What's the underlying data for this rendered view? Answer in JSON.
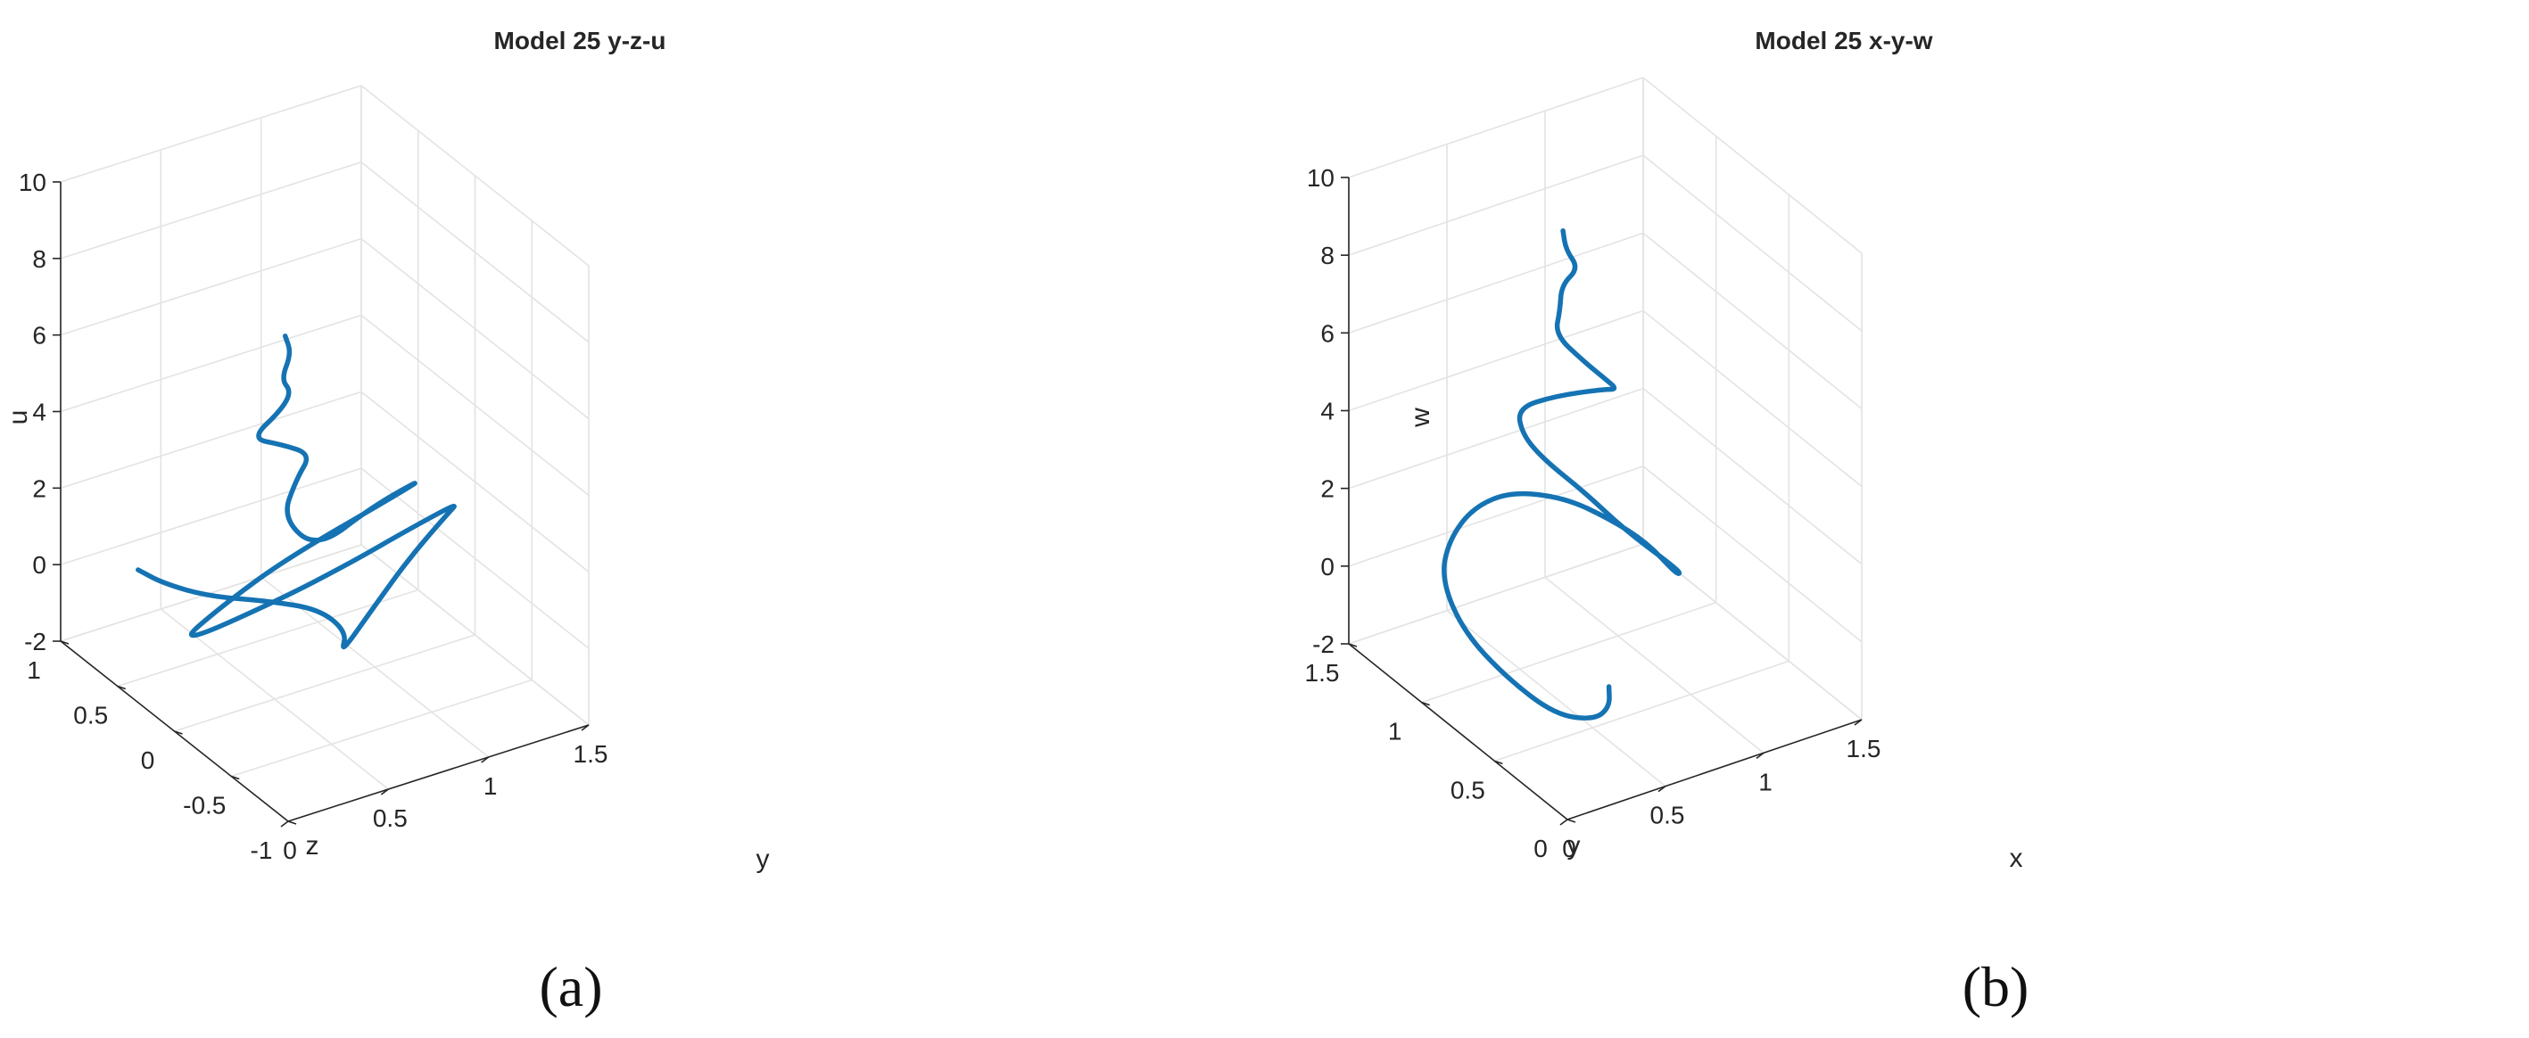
{
  "chart_data": [
    {
      "type": "line",
      "panel_label": "(a)",
      "title": "Model 25 y-z-u",
      "xlabel": "y",
      "ylabel": "z",
      "zlabel": "u",
      "xlim": [
        0,
        1.5
      ],
      "ylim": [
        -1,
        1
      ],
      "zlim": [
        -2,
        10
      ],
      "x_ticks": [
        "0",
        "0.5",
        "1",
        "1.5"
      ],
      "y_ticks": [
        "-1",
        "-0.5",
        "0",
        "0.5",
        "1"
      ],
      "z_ticks": [
        "-2",
        "0",
        "2",
        "4",
        "6",
        "8",
        "10"
      ],
      "grid": true,
      "color": "#1573b3",
      "series": [
        {
          "x": [
            0.08,
            0.16,
            0.3,
            0.48,
            0.6,
            0.55,
            0.42,
            0.72,
            1.05,
            1.38,
            1.45,
            1.2,
            0.9,
            0.55,
            0.05,
            0.28,
            0.6,
            1.12,
            1.25,
            1.0,
            0.72,
            0.55,
            0.62,
            0.7,
            0.55,
            0.4,
            0.55,
            0.6,
            0.55,
            0.6,
            0.57
          ],
          "y": [
            0.46,
            0.38,
            0.22,
            0.02,
            -0.22,
            -0.55,
            -0.72,
            -0.48,
            -0.22,
            0.02,
            0.06,
            0.05,
            0.05,
            0.06,
            0.08,
            0.07,
            0.08,
            0.02,
            0.01,
            0.02,
            0.02,
            0.02,
            0.02,
            0.03,
            0.03,
            0.03,
            0.03,
            0.03,
            0.03,
            0.03,
            0.03
          ],
          "z": [
            1.0,
            0.7,
            0.5,
            0.55,
            0.7,
            0.95,
            1.0,
            1.15,
            1.3,
            1.35,
            1.4,
            1.15,
            0.75,
            0.35,
            -0.05,
            0.65,
            1.3,
            2.25,
            2.5,
            2.15,
            1.5,
            2.6,
            3.5,
            4.0,
            4.5,
            4.9,
            5.4,
            5.8,
            6.2,
            6.8,
            7.3
          ]
        }
      ]
    },
    {
      "type": "line",
      "panel_label": "(b)",
      "title": "Model 25 x-y-w",
      "xlabel": "x",
      "ylabel": "y",
      "zlabel": "w",
      "xlim": [
        0,
        1.5
      ],
      "ylim": [
        0,
        1.5
      ],
      "zlim": [
        -2,
        10
      ],
      "x_ticks": [
        "0",
        "0.5",
        "1",
        "1.5"
      ],
      "y_ticks": [
        "0",
        "0.5",
        "1",
        "1.5"
      ],
      "z_ticks": [
        "-2",
        "0",
        "2",
        "4",
        "6",
        "8",
        "10"
      ],
      "grid": true,
      "color": "#1573b3",
      "series": [
        {
          "x": [
            0.62,
            0.55,
            0.42,
            0.25,
            0.12,
            0.05,
            0.1,
            0.25,
            0.45,
            0.62,
            0.8,
            0.92,
            1.0,
            1.0,
            0.95,
            0.85,
            0.7,
            0.62,
            0.55,
            0.55,
            0.6,
            0.72,
            0.85,
            0.85,
            0.8,
            0.75,
            0.68,
            0.72,
            0.75,
            0.8,
            0.75,
            0.72
          ],
          "y": [
            0.55,
            0.45,
            0.38,
            0.42,
            0.58,
            0.78,
            1.0,
            1.15,
            1.25,
            1.22,
            1.1,
            0.95,
            0.8,
            0.6,
            0.5,
            0.45,
            0.55,
            0.72,
            0.9,
            1.05,
            1.15,
            1.05,
            0.9,
            0.8,
            0.82,
            0.9,
            1.0,
            1.02,
            1.05,
            1.0,
            1.02,
            1.0
          ],
          "z": [
            -1.3,
            -1.4,
            -1.3,
            -1.0,
            -0.3,
            0.4,
            1.0,
            1.3,
            1.5,
            1.7,
            1.6,
            1.3,
            1.0,
            0.8,
            1.2,
            1.8,
            2.6,
            3.2,
            3.6,
            3.8,
            4.1,
            4.5,
            4.9,
            5.2,
            5.5,
            5.8,
            6.3,
            6.8,
            7.3,
            7.8,
            8.3,
            8.9
          ]
        }
      ]
    }
  ]
}
